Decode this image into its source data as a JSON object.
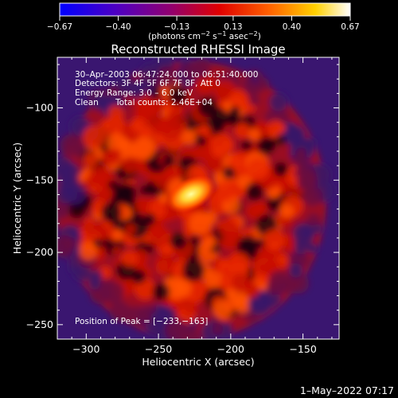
{
  "chart_data": {
    "type": "heatmap",
    "title": "Reconstructed RHESSI Image",
    "xlabel": "Heliocentric X (arcsec)",
    "ylabel": "Heliocentric Y (arcsec)",
    "xlim": [
      -320,
      -125
    ],
    "ylim": [
      -260,
      -65
    ],
    "x_ticks": [
      -300,
      -250,
      -200,
      -150
    ],
    "y_ticks": [
      -100,
      -150,
      -200,
      -250
    ],
    "x_tick_labels": [
      "−300",
      "−250",
      "−200",
      "−150"
    ],
    "y_tick_labels": [
      "−100",
      "−150",
      "−200",
      "−250"
    ],
    "colorbar": {
      "range": [
        -0.67,
        0.67
      ],
      "ticks": [
        -0.67,
        -0.4,
        -0.13,
        0.13,
        0.4,
        0.67
      ],
      "tick_labels": [
        "−0.67",
        "−0.40",
        "−0.13",
        "0.13",
        "0.40",
        "0.67"
      ],
      "colormap": [
        "#0000ff",
        "#5a00c0",
        "#8a0080",
        "#c80000",
        "#ff4000",
        "#ffa000",
        "#ffff60",
        "#ffffff"
      ]
    },
    "units": {
      "base": "(photons cm",
      "exp1": "−2",
      "mid": " s",
      "exp2": "−1",
      "mid2": " asec",
      "exp3": "−2",
      "end": ")"
    },
    "peak": {
      "x": -233,
      "y": -163
    },
    "annotations": {
      "time": "30–Apr–2003 06:47:24.000 to 06:51:40.000",
      "detectors": "Detectors: 3F 4F 5F 6F 7F 8F, Att 0",
      "energy": "Energy Range: 3.0 – 6.0 keV",
      "clean": "Clean",
      "counts": "Total counts: 2.46E+04",
      "peak_text": "Position of Peak = [−233,−163]"
    },
    "background_colors": {
      "purple": "#4a1a7a",
      "red": "#c81000",
      "orange": "#ff5000",
      "yellow": "#ffe040"
    }
  },
  "timestamp": "1–May–2022 07:17"
}
